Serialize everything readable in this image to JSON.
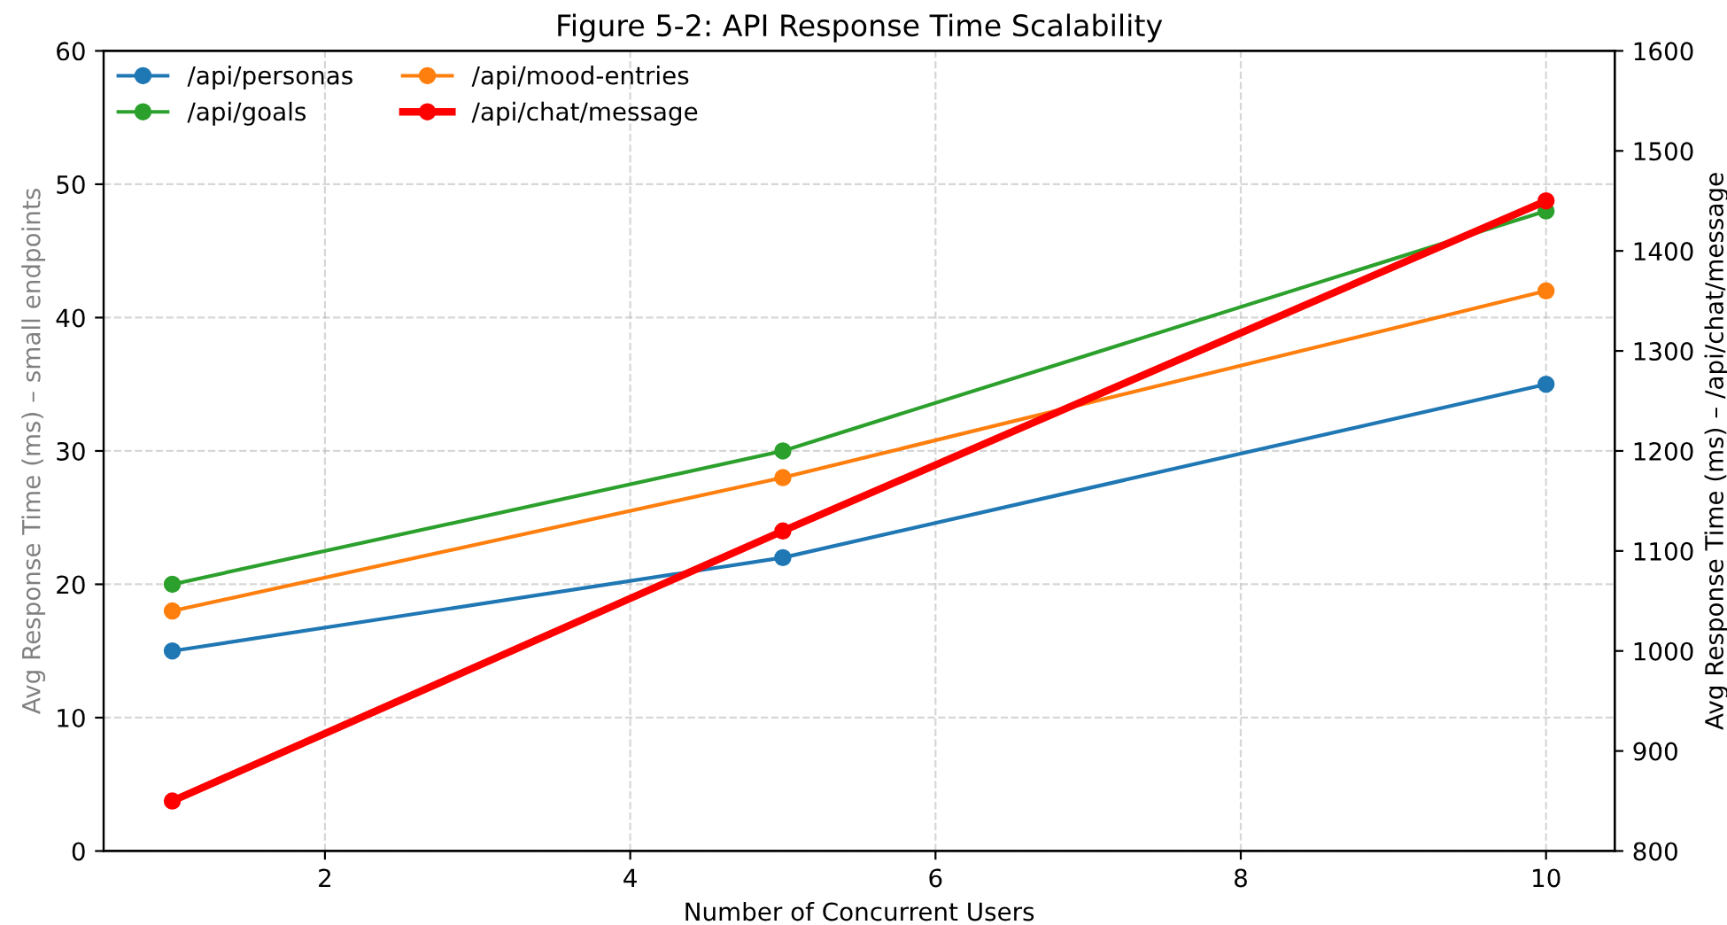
{
  "chart_data": {
    "type": "line",
    "title": "Figure 5-2: API Response Time Scalability",
    "xlabel": "Number of Concurrent Users",
    "ylabel": "Avg Response Time (ms) – small endpoints",
    "y2label": "Avg Response Time (ms) – /api/chat/message",
    "x": [
      1,
      5,
      10
    ],
    "series": [
      {
        "name": "/api/personas",
        "color": "#1f77b4",
        "values": [
          15,
          22,
          35
        ]
      },
      {
        "name": "/api/goals",
        "color": "#2ca02c",
        "values": [
          20,
          30,
          48
        ]
      },
      {
        "name": "/api/mood-entries",
        "color": "#ff7f0e",
        "values": [
          18,
          28,
          42
        ]
      },
      {
        "name": "/api/chat/message",
        "color": "#ff0000",
        "values": [
          850,
          1120,
          1450
        ],
        "axis": "y2"
      }
    ],
    "xlim": [
      0.55,
      10.45
    ],
    "xticks": [
      2,
      4,
      6,
      8,
      10
    ],
    "ylim": [
      0,
      60
    ],
    "yticks": [
      0,
      10,
      20,
      30,
      40,
      50,
      60
    ],
    "y2lim": [
      800,
      1600
    ],
    "y2ticks": [
      800,
      900,
      1000,
      1100,
      1200,
      1300,
      1400,
      1500,
      1600
    ],
    "grid": true,
    "legend": "top left",
    "marker": "circle",
    "line_style": "solid"
  }
}
